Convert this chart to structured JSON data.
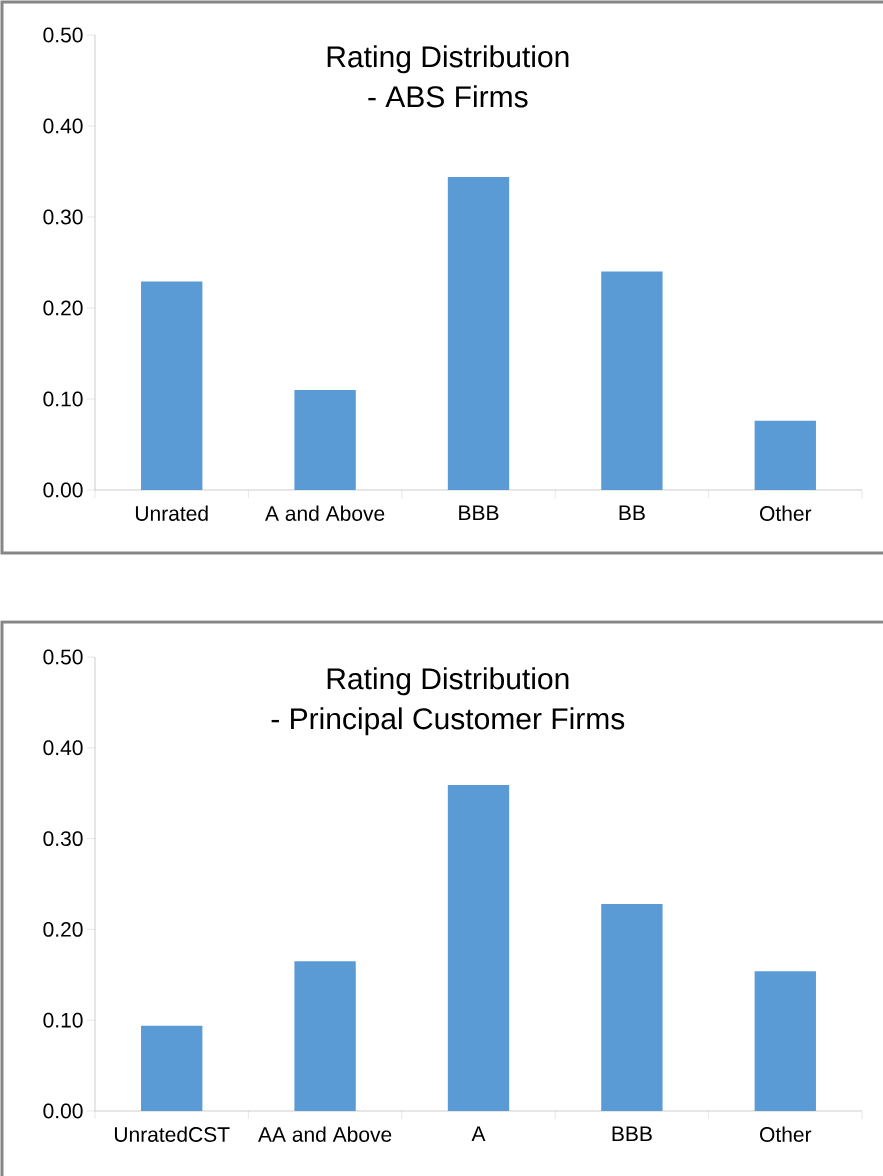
{
  "chart_data": [
    {
      "type": "bar",
      "title": "Rating Distribution",
      "subtitle": "- ABS Firms",
      "categories": [
        "Unrated",
        "A and Above",
        "BBB",
        "BB",
        "Other"
      ],
      "values": [
        0.229,
        0.11,
        0.344,
        0.24,
        0.076
      ],
      "color": "#5b9bd5",
      "ylim": [
        0,
        0.5
      ],
      "yticks": [
        {
          "value": 0,
          "label": "0.00"
        },
        {
          "value": 0.1,
          "label": "0.10"
        },
        {
          "value": 0.2,
          "label": "0.20"
        },
        {
          "value": 0.3,
          "label": "0.30"
        },
        {
          "value": 0.4,
          "label": "0.40"
        },
        {
          "value": 0.5,
          "label": "0.50"
        }
      ]
    },
    {
      "type": "bar",
      "title": "Rating Distribution",
      "subtitle": "- Principal Customer Firms",
      "categories": [
        "UnratedCST",
        "AA and Above",
        "A",
        "BBB",
        "Other"
      ],
      "values": [
        0.094,
        0.165,
        0.359,
        0.228,
        0.154
      ],
      "color": "#5b9bd5",
      "ylim": [
        0,
        0.5
      ],
      "yticks": [
        {
          "value": 0,
          "label": "0.00"
        },
        {
          "value": 0.1,
          "label": "0.10"
        },
        {
          "value": 0.2,
          "label": "0.20"
        },
        {
          "value": 0.3,
          "label": "0.30"
        },
        {
          "value": 0.4,
          "label": "0.40"
        },
        {
          "value": 0.5,
          "label": "0.50"
        }
      ]
    }
  ]
}
